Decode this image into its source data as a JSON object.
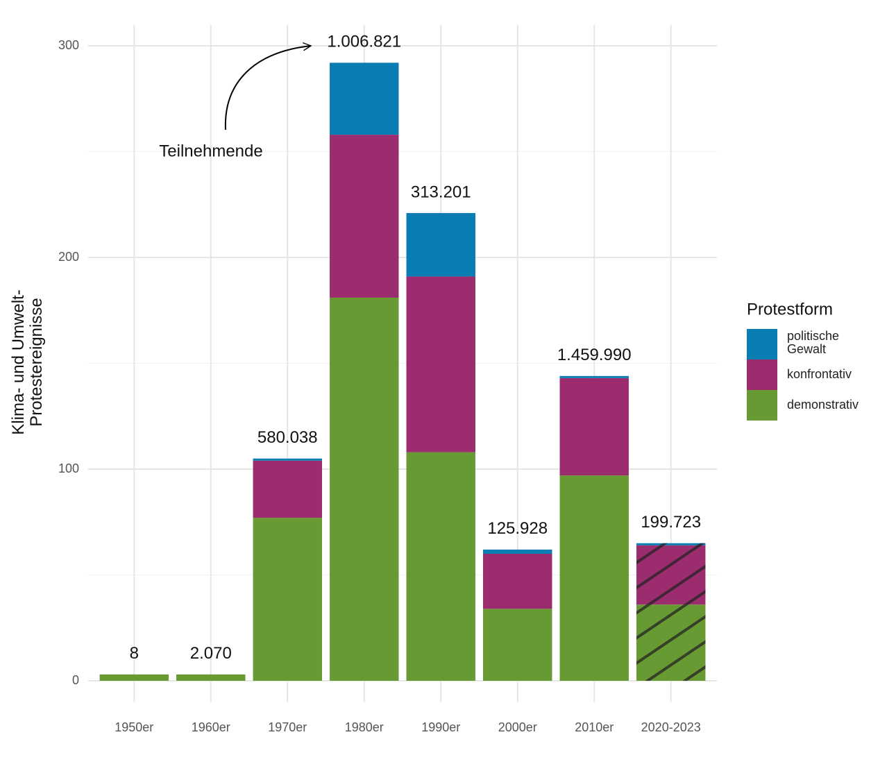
{
  "chart_data": {
    "type": "stacked_bar",
    "y_axis_label": "Klima- und Umwelt-\nProtestereignisse",
    "categories": [
      "1950er",
      "1960er",
      "1970er",
      "1980er",
      "1990er",
      "2000er",
      "2010er",
      "2020-2023"
    ],
    "series": [
      {
        "name": "demonstrativ",
        "color": "#679a33",
        "values": [
          3,
          3,
          77,
          181,
          108,
          34,
          97,
          36
        ]
      },
      {
        "name": "konfrontativ",
        "color": "#9b2c6e",
        "values": [
          0,
          0,
          27,
          77,
          83,
          26,
          46,
          28
        ]
      },
      {
        "name": "politische Gewalt",
        "color": "#0a7db3",
        "values": [
          0,
          0,
          1,
          34,
          30,
          2,
          1,
          1
        ]
      }
    ],
    "participant_labels": [
      "8",
      "2.070",
      "580.038",
      "1.006.821",
      "313.201",
      "125.928",
      "1.459.990",
      "199.723"
    ],
    "hatched": [
      false,
      false,
      false,
      false,
      false,
      false,
      false,
      true
    ],
    "annotation": "Teilnehmende",
    "legend_title": "Protestform",
    "ylim": [
      -10,
      310
    ],
    "yticks": [
      0,
      100,
      200,
      300
    ],
    "minor_yticks": [
      50,
      150,
      250
    ],
    "grid": true
  }
}
